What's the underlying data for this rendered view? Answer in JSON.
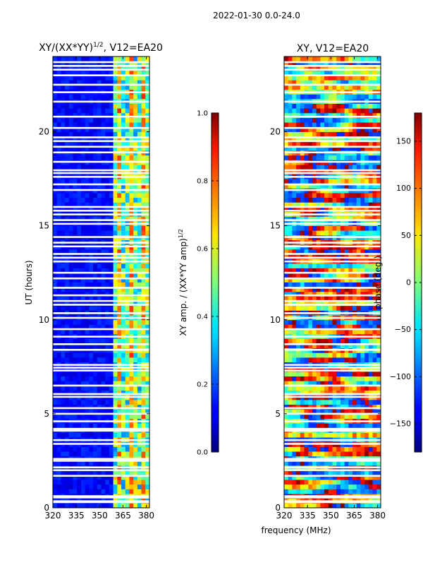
{
  "suptitle": "2022-01-30 0.0-24.0",
  "xlabel": "frequency (MHz)",
  "chart_data": [
    {
      "type": "heatmap",
      "title_main": "XY/(XX*YY)",
      "title_exp": "1/2",
      "title_suffix": ", V12=EA20",
      "ylabel": "UT (hours)",
      "x_range_mhz": [
        320,
        382
      ],
      "y_range_hours": [
        0,
        24
      ],
      "x_ticks": [
        "320",
        "335",
        "350",
        "365",
        "380"
      ],
      "x_tick_values": [
        320,
        335,
        350,
        365,
        380
      ],
      "y_ticks": [
        "0",
        "5",
        "10",
        "15",
        "20"
      ],
      "y_tick_values": [
        0,
        5,
        10,
        15,
        20
      ],
      "colorbar": {
        "label": "XY amp. / (XX*YY amp)",
        "label_exp": "1/2",
        "range": [
          0.0,
          1.0
        ],
        "ticks": [
          "0.0",
          "0.2",
          "0.4",
          "0.6",
          "0.8",
          "1.0"
        ],
        "tick_values": [
          0.0,
          0.2,
          0.4,
          0.6,
          0.8,
          1.0
        ]
      }
    },
    {
      "type": "heatmap",
      "title": "XY, V12=EA20",
      "x_range_mhz": [
        320,
        382
      ],
      "y_range_hours": [
        0,
        24
      ],
      "x_ticks": [
        "320",
        "335",
        "350",
        "365",
        "380"
      ],
      "x_tick_values": [
        320,
        335,
        350,
        365,
        380
      ],
      "y_ticks": [
        "0",
        "5",
        "10",
        "15",
        "20"
      ],
      "y_tick_values": [
        0,
        5,
        10,
        15,
        20
      ],
      "colorbar": {
        "label": "phase (deg.)",
        "range": [
          -180,
          180
        ],
        "ticks": [
          "−150",
          "−100",
          "−50",
          "0",
          "50",
          "100",
          "150"
        ],
        "tick_values": [
          -150,
          -100,
          -50,
          0,
          50,
          100,
          150
        ]
      }
    }
  ],
  "flagged_hours": [
    0.3,
    0.35,
    0.55,
    0.62,
    1.7,
    2.0,
    2.15,
    2.5,
    2.6,
    3.4,
    3.6,
    4.1,
    4.2,
    4.6,
    5.0,
    5.3,
    5.9,
    6.05,
    6.5,
    7.3,
    7.45,
    7.6,
    8.4,
    8.7,
    9.1,
    9.5,
    10.1,
    10.35,
    10.8,
    11.0,
    11.3,
    11.7,
    12.2,
    12.5,
    13.1,
    13.3,
    13.5,
    13.9,
    14.1,
    14.4,
    15.1,
    15.3,
    15.6,
    15.8,
    16.0,
    16.9,
    17.2,
    17.6,
    17.8,
    17.95,
    18.4,
    18.9,
    19.2,
    19.5,
    19.7,
    20.2,
    20.8,
    21.6,
    22.1,
    22.5,
    23.0,
    23.3,
    23.5,
    23.7
  ],
  "amp_active_band_mhz": [
    360,
    382
  ]
}
